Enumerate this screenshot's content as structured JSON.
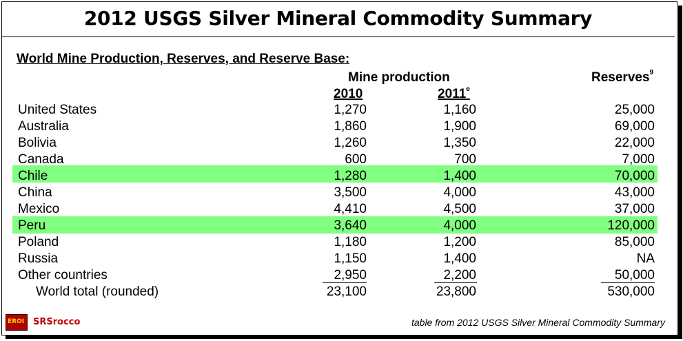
{
  "title": "2012 USGS Silver Mineral Commodity Summary",
  "section_heading": "World Mine Production, Reserves, and Reserve Base:",
  "headers": {
    "mine_production": "Mine production",
    "year_2010": "2010",
    "year_2011": "2011",
    "year_2011_sup": "e",
    "reserves": "Reserves",
    "reserves_sup": "9"
  },
  "rows": [
    {
      "country": "United States",
      "y2010": "1,270",
      "y2011": "1,160",
      "reserves": "25,000"
    },
    {
      "country": "Australia",
      "y2010": "1,860",
      "y2011": "1,900",
      "reserves": "69,000"
    },
    {
      "country": "Bolivia",
      "y2010": "1,260",
      "y2011": "1,350",
      "reserves": "22,000"
    },
    {
      "country": "Canada",
      "y2010": "600",
      "y2011": "700",
      "reserves": "7,000"
    },
    {
      "country": "Chile",
      "y2010": "1,280",
      "y2011": "1,400",
      "reserves": "70,000"
    },
    {
      "country": "China",
      "y2010": "3,500",
      "y2011": "4,000",
      "reserves": "43,000"
    },
    {
      "country": "Mexico",
      "y2010": "4,410",
      "y2011": "4,500",
      "reserves": "37,000"
    },
    {
      "country": "Peru",
      "y2010": "3,640",
      "y2011": "4,000",
      "reserves": "120,000"
    },
    {
      "country": "Poland",
      "y2010": "1,180",
      "y2011": "1,200",
      "reserves": "85,000"
    },
    {
      "country": "Russia",
      "y2010": "1,150",
      "y2011": "1,400",
      "reserves": "NA"
    },
    {
      "country": "Other countries",
      "y2010": "2,950",
      "y2011": "2,200",
      "reserves": "50,000"
    },
    {
      "country": "World total (rounded)",
      "y2010": "23,100",
      "y2011": "23,800",
      "reserves": "530,000"
    }
  ],
  "highlight_color": "#80ff80",
  "footer": {
    "logo_text": "EROI",
    "brand": "SRSrocco",
    "source_note": "table from 2012 USGS Silver Mineral Commodity Summary"
  }
}
